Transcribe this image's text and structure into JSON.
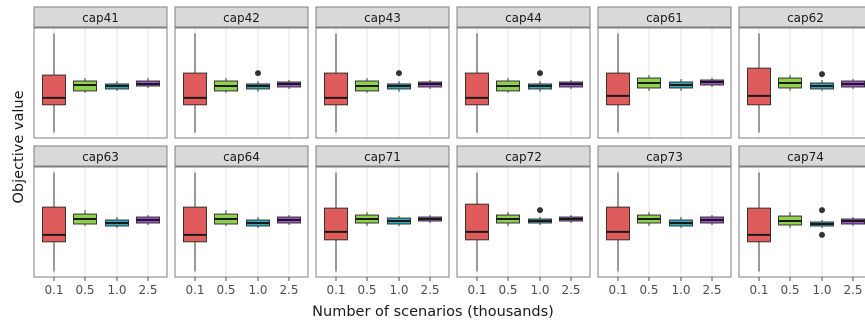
{
  "chart_data": {
    "type": "boxplot",
    "facet_layout": "2 rows x 6 columns",
    "xlabel": "Number of scenarios (thousands)",
    "ylabel": "Objective value",
    "categories": [
      "0.1",
      "0.5",
      "1.0",
      "2.5"
    ],
    "colors": {
      "0.1": "#e05c5c",
      "0.5": "#8fd14f",
      "1.0": "#33a9b8",
      "2.5": "#a24fd1"
    },
    "grid": "vertical major gridlines",
    "y_scale": "relative, no tick labels",
    "panels": [
      {
        "name": "cap41",
        "boxes": [
          {
            "category": "0.1",
            "min": 0.0,
            "q1": 0.28,
            "median": 0.35,
            "q3": 0.58,
            "max": 1.0,
            "outliers": []
          },
          {
            "category": "0.5",
            "min": 0.4,
            "q1": 0.42,
            "median": 0.48,
            "q3": 0.52,
            "max": 0.55,
            "outliers": []
          },
          {
            "category": "1.0",
            "min": 0.42,
            "q1": 0.44,
            "median": 0.47,
            "q3": 0.49,
            "max": 0.52,
            "outliers": []
          },
          {
            "category": "2.5",
            "min": 0.45,
            "q1": 0.47,
            "median": 0.49,
            "q3": 0.52,
            "max": 0.55,
            "outliers": []
          }
        ]
      },
      {
        "name": "cap42",
        "boxes": [
          {
            "category": "0.1",
            "min": 0.0,
            "q1": 0.28,
            "median": 0.35,
            "q3": 0.6,
            "max": 1.0,
            "outliers": []
          },
          {
            "category": "0.5",
            "min": 0.4,
            "q1": 0.42,
            "median": 0.47,
            "q3": 0.52,
            "max": 0.55,
            "outliers": []
          },
          {
            "category": "1.0",
            "min": 0.41,
            "q1": 0.44,
            "median": 0.47,
            "q3": 0.49,
            "max": 0.52,
            "outliers": [
              0.6
            ]
          },
          {
            "category": "2.5",
            "min": 0.44,
            "q1": 0.46,
            "median": 0.49,
            "q3": 0.51,
            "max": 0.53,
            "outliers": []
          }
        ]
      },
      {
        "name": "cap43",
        "boxes": [
          {
            "category": "0.1",
            "min": 0.0,
            "q1": 0.28,
            "median": 0.35,
            "q3": 0.6,
            "max": 1.0,
            "outliers": []
          },
          {
            "category": "0.5",
            "min": 0.4,
            "q1": 0.42,
            "median": 0.47,
            "q3": 0.52,
            "max": 0.55,
            "outliers": []
          },
          {
            "category": "1.0",
            "min": 0.41,
            "q1": 0.44,
            "median": 0.47,
            "q3": 0.49,
            "max": 0.52,
            "outliers": [
              0.6
            ]
          },
          {
            "category": "2.5",
            "min": 0.44,
            "q1": 0.46,
            "median": 0.49,
            "q3": 0.51,
            "max": 0.53,
            "outliers": []
          }
        ]
      },
      {
        "name": "cap44",
        "boxes": [
          {
            "category": "0.1",
            "min": 0.0,
            "q1": 0.28,
            "median": 0.35,
            "q3": 0.6,
            "max": 1.0,
            "outliers": []
          },
          {
            "category": "0.5",
            "min": 0.4,
            "q1": 0.42,
            "median": 0.47,
            "q3": 0.52,
            "max": 0.55,
            "outliers": []
          },
          {
            "category": "1.0",
            "min": 0.41,
            "q1": 0.44,
            "median": 0.47,
            "q3": 0.49,
            "max": 0.52,
            "outliers": [
              0.6
            ]
          },
          {
            "category": "2.5",
            "min": 0.44,
            "q1": 0.46,
            "median": 0.49,
            "q3": 0.51,
            "max": 0.53,
            "outliers": []
          }
        ]
      },
      {
        "name": "cap61",
        "boxes": [
          {
            "category": "0.1",
            "min": 0.0,
            "q1": 0.28,
            "median": 0.37,
            "q3": 0.6,
            "max": 1.0,
            "outliers": []
          },
          {
            "category": "0.5",
            "min": 0.42,
            "q1": 0.45,
            "median": 0.5,
            "q3": 0.55,
            "max": 0.58,
            "outliers": []
          },
          {
            "category": "1.0",
            "min": 0.42,
            "q1": 0.45,
            "median": 0.48,
            "q3": 0.51,
            "max": 0.54,
            "outliers": []
          },
          {
            "category": "2.5",
            "min": 0.46,
            "q1": 0.48,
            "median": 0.51,
            "q3": 0.53,
            "max": 0.55,
            "outliers": []
          }
        ]
      },
      {
        "name": "cap62",
        "boxes": [
          {
            "category": "0.1",
            "min": 0.0,
            "q1": 0.28,
            "median": 0.37,
            "q3": 0.65,
            "max": 1.0,
            "outliers": []
          },
          {
            "category": "0.5",
            "min": 0.42,
            "q1": 0.45,
            "median": 0.5,
            "q3": 0.55,
            "max": 0.58,
            "outliers": []
          },
          {
            "category": "1.0",
            "min": 0.42,
            "q1": 0.44,
            "median": 0.47,
            "q3": 0.5,
            "max": 0.53,
            "outliers": [
              0.59
            ]
          },
          {
            "category": "2.5",
            "min": 0.44,
            "q1": 0.46,
            "median": 0.49,
            "q3": 0.52,
            "max": 0.54,
            "outliers": []
          }
        ]
      },
      {
        "name": "cap63",
        "boxes": [
          {
            "category": "0.1",
            "min": 0.0,
            "q1": 0.3,
            "median": 0.37,
            "q3": 0.65,
            "max": 1.0,
            "outliers": []
          },
          {
            "category": "0.5",
            "min": 0.46,
            "q1": 0.48,
            "median": 0.53,
            "q3": 0.58,
            "max": 0.62,
            "outliers": []
          },
          {
            "category": "1.0",
            "min": 0.44,
            "q1": 0.46,
            "median": 0.49,
            "q3": 0.52,
            "max": 0.55,
            "outliers": []
          },
          {
            "category": "2.5",
            "min": 0.47,
            "q1": 0.49,
            "median": 0.52,
            "q3": 0.55,
            "max": 0.57,
            "outliers": []
          }
        ]
      },
      {
        "name": "cap64",
        "boxes": [
          {
            "category": "0.1",
            "min": 0.0,
            "q1": 0.3,
            "median": 0.37,
            "q3": 0.65,
            "max": 1.0,
            "outliers": []
          },
          {
            "category": "0.5",
            "min": 0.46,
            "q1": 0.48,
            "median": 0.53,
            "q3": 0.58,
            "max": 0.62,
            "outliers": []
          },
          {
            "category": "1.0",
            "min": 0.44,
            "q1": 0.46,
            "median": 0.49,
            "q3": 0.52,
            "max": 0.55,
            "outliers": []
          },
          {
            "category": "2.5",
            "min": 0.47,
            "q1": 0.49,
            "median": 0.52,
            "q3": 0.55,
            "max": 0.57,
            "outliers": []
          }
        ]
      },
      {
        "name": "cap71",
        "boxes": [
          {
            "category": "0.1",
            "min": 0.0,
            "q1": 0.32,
            "median": 0.4,
            "q3": 0.64,
            "max": 1.0,
            "outliers": []
          },
          {
            "category": "0.5",
            "min": 0.46,
            "q1": 0.49,
            "median": 0.53,
            "q3": 0.57,
            "max": 0.6,
            "outliers": []
          },
          {
            "category": "1.0",
            "min": 0.46,
            "q1": 0.48,
            "median": 0.51,
            "q3": 0.54,
            "max": 0.56,
            "outliers": []
          },
          {
            "category": "2.5",
            "min": 0.49,
            "q1": 0.51,
            "median": 0.53,
            "q3": 0.55,
            "max": 0.57,
            "outliers": []
          }
        ]
      },
      {
        "name": "cap72",
        "boxes": [
          {
            "category": "0.1",
            "min": 0.0,
            "q1": 0.32,
            "median": 0.4,
            "q3": 0.68,
            "max": 1.0,
            "outliers": []
          },
          {
            "category": "0.5",
            "min": 0.46,
            "q1": 0.49,
            "median": 0.53,
            "q3": 0.57,
            "max": 0.6,
            "outliers": []
          },
          {
            "category": "1.0",
            "min": 0.47,
            "q1": 0.49,
            "median": 0.51,
            "q3": 0.53,
            "max": 0.55,
            "outliers": [
              0.62
            ]
          },
          {
            "category": "2.5",
            "min": 0.49,
            "q1": 0.51,
            "median": 0.53,
            "q3": 0.55,
            "max": 0.57,
            "outliers": []
          }
        ]
      },
      {
        "name": "cap73",
        "boxes": [
          {
            "category": "0.1",
            "min": 0.0,
            "q1": 0.32,
            "median": 0.4,
            "q3": 0.65,
            "max": 1.0,
            "outliers": []
          },
          {
            "category": "0.5",
            "min": 0.46,
            "q1": 0.49,
            "median": 0.53,
            "q3": 0.57,
            "max": 0.6,
            "outliers": []
          },
          {
            "category": "1.0",
            "min": 0.44,
            "q1": 0.46,
            "median": 0.49,
            "q3": 0.52,
            "max": 0.55,
            "outliers": []
          },
          {
            "category": "2.5",
            "min": 0.47,
            "q1": 0.49,
            "median": 0.52,
            "q3": 0.55,
            "max": 0.57,
            "outliers": []
          }
        ]
      },
      {
        "name": "cap74",
        "boxes": [
          {
            "category": "0.1",
            "min": 0.0,
            "q1": 0.3,
            "median": 0.37,
            "q3": 0.64,
            "max": 1.0,
            "outliers": []
          },
          {
            "category": "0.5",
            "min": 0.44,
            "q1": 0.47,
            "median": 0.51,
            "q3": 0.56,
            "max": 0.6,
            "outliers": []
          },
          {
            "category": "1.0",
            "min": 0.44,
            "q1": 0.46,
            "median": 0.48,
            "q3": 0.5,
            "max": 0.52,
            "outliers": [
              0.62,
              0.37
            ]
          },
          {
            "category": "2.5",
            "min": 0.46,
            "q1": 0.48,
            "median": 0.51,
            "q3": 0.53,
            "max": 0.55,
            "outliers": []
          }
        ]
      }
    ]
  }
}
